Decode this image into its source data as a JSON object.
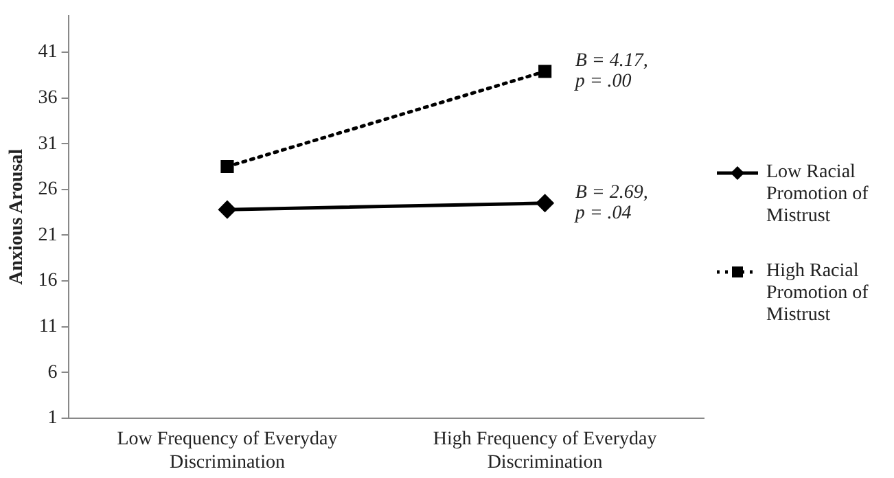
{
  "chart_data": {
    "type": "line",
    "ylabel": "Anxious Arousal",
    "categories": [
      "Low Frequency of Everyday Discrimination",
      "High Frequency of Everyday Discrimination"
    ],
    "series": [
      {
        "name": "Low Racial Promotion of Mistrust",
        "color": "#000000",
        "values": [
          23.8,
          24.5
        ],
        "marker": "diamond",
        "line_style": "solid"
      },
      {
        "name": "High  Racial Promotion of Mistrust",
        "color": "#000000",
        "values": [
          28.5,
          38.9
        ],
        "marker": "square",
        "line_style": "dotted"
      }
    ],
    "ylim": [
      1,
      45
    ],
    "yticks": [
      1,
      6,
      11,
      16,
      21,
      26,
      31,
      36,
      41
    ],
    "grid": false,
    "legend": "right",
    "annotations": [
      {
        "text": "B = 4.17,\np = .00",
        "x": "High Frequency of Everyday Discrimination",
        "y": 38.9
      },
      {
        "text": "B = 2.69,\np = .04",
        "x": "High Frequency of Everyday Discrimination",
        "y": 24.5
      }
    ]
  }
}
